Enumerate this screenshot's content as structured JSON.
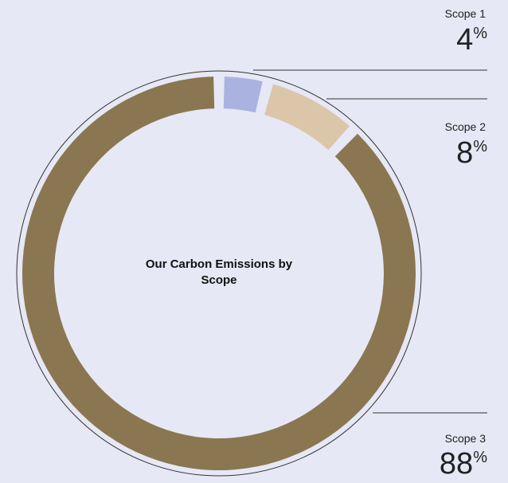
{
  "chart_data": {
    "type": "donut",
    "title": "Our Carbon Emissions by Scope",
    "categories": [
      "Scope 1",
      "Scope 2",
      "Scope 3"
    ],
    "values": [
      4,
      8,
      88
    ],
    "value_labels": [
      "4%",
      "8%",
      "88%"
    ],
    "colors": [
      "#aab3df",
      "#dcc6aa",
      "#8a7650"
    ]
  }
}
